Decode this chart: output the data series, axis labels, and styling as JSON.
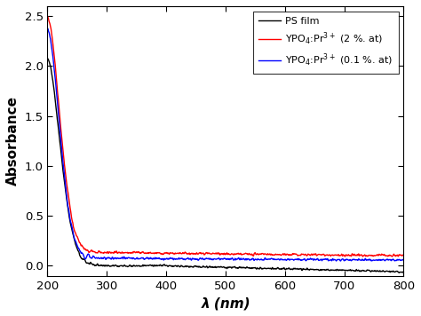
{
  "xlabel": "λ (nm)",
  "ylabel": "Absorbance",
  "xlim": [
    200,
    800
  ],
  "ylim": [
    -0.1,
    2.6
  ],
  "yticks": [
    0.0,
    0.5,
    1.0,
    1.5,
    2.0,
    2.5
  ],
  "xticks": [
    200,
    300,
    400,
    500,
    600,
    700,
    800
  ],
  "legend": [
    {
      "label": "PS film",
      "color": "#000000"
    },
    {
      "label": "YPO$_4$:Pr$^{3+}$ (2 %. at)",
      "color": "#ff0000"
    },
    {
      "label": "YPO$_4$:Pr$^{3+}$ (0.1 %. at)",
      "color": "#0000ff"
    }
  ],
  "line_width": 1.0,
  "background_color": "#ffffff"
}
